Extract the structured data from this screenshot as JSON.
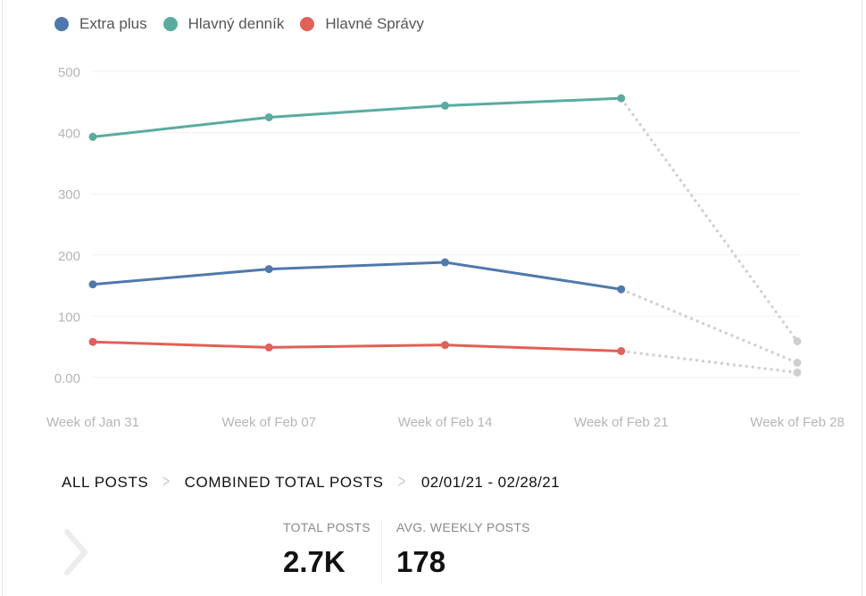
{
  "legend": [
    {
      "label": "Extra plus",
      "color": "#4f79ad"
    },
    {
      "label": "Hlavný denník",
      "color": "#5aaba0"
    },
    {
      "label": "Hlavné Správy",
      "color": "#e16057"
    }
  ],
  "breadcrumb": {
    "all_posts": "ALL POSTS",
    "combined": "COMBINED TOTAL POSTS",
    "range": "02/01/21 - 02/28/21"
  },
  "stats": {
    "total_label": "TOTAL POSTS",
    "total_value": "2.7K",
    "avg_label": "AVG. WEEKLY POSTS",
    "avg_value": "178"
  },
  "icons": {
    "nav": "chevron-right-icon"
  },
  "chart_data": {
    "type": "line",
    "categories": [
      "Week of Jan 31",
      "Week of Feb 07",
      "Week of Feb 14",
      "Week of Feb 21",
      "Week of Feb 28"
    ],
    "yticks": [
      "0.00",
      "100",
      "200",
      "300",
      "400",
      "500"
    ],
    "ylim": [
      0,
      500
    ],
    "grid": true,
    "legend_position": "top-left",
    "series": [
      {
        "name": "Extra plus",
        "color": "#4f79ad",
        "values": [
          152,
          177,
          188,
          144,
          24
        ]
      },
      {
        "name": "Hlavný denník",
        "color": "#5aaba0",
        "values": [
          393,
          425,
          444,
          456,
          59
        ]
      },
      {
        "name": "Hlavné Správy",
        "color": "#e16057",
        "values": [
          58,
          49,
          53,
          43,
          8
        ]
      }
    ],
    "partial_last_point": true,
    "partial_color": "#cfcfcf"
  }
}
